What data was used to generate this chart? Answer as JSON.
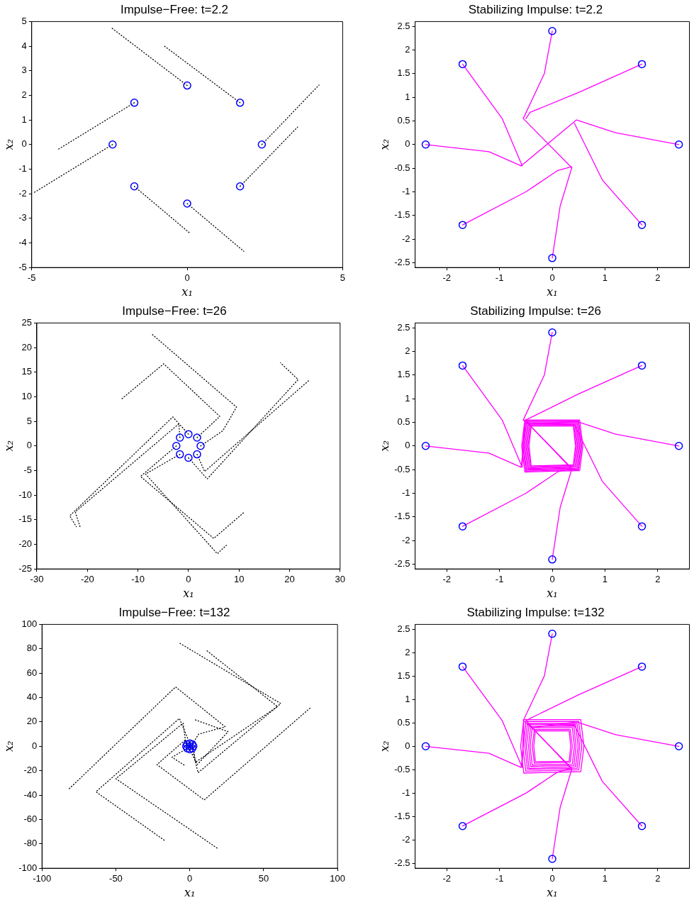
{
  "chart_data": [
    {
      "type": "line",
      "title": "Impulse−Free: t=2.2",
      "xlabel": "x₁",
      "ylabel": "x₂",
      "xlim": [
        -5,
        5
      ],
      "xticks": [
        -5,
        0,
        5
      ],
      "ylim": [
        -5,
        5
      ],
      "yticks": [
        -5,
        -4,
        -3,
        -2,
        -1,
        0,
        1,
        2,
        3,
        4,
        5
      ],
      "line_style": "dotted",
      "series": [
        {
          "type": "line",
          "color": "#000000",
          "x": [
            0,
            -2.42
          ],
          "values": [
            2.4,
            4.73
          ]
        },
        {
          "type": "line",
          "color": "#000000",
          "x": [
            1.7,
            -0.73
          ],
          "values": [
            1.7,
            4.0
          ]
        },
        {
          "type": "line",
          "color": "#000000",
          "x": [
            -1.7,
            -4.17
          ],
          "values": [
            1.7,
            -0.21
          ]
        },
        {
          "type": "line",
          "color": "#000000",
          "x": [
            -2.4,
            -4.95
          ],
          "values": [
            0,
            -1.97
          ]
        },
        {
          "type": "line",
          "color": "#000000",
          "x": [
            -1.7,
            0.11
          ],
          "values": [
            -1.7,
            -3.63
          ]
        },
        {
          "type": "line",
          "color": "#000000",
          "x": [
            0,
            1.82
          ],
          "values": [
            -2.4,
            -4.34
          ]
        },
        {
          "type": "line",
          "color": "#000000",
          "x": [
            2.4,
            4.24
          ],
          "values": [
            0,
            2.42
          ]
        },
        {
          "type": "line",
          "color": "#000000",
          "x": [
            1.7,
            3.55
          ],
          "values": [
            -1.7,
            0.71
          ]
        },
        {
          "type": "scatter",
          "marker": "circle",
          "color": "#0000ff",
          "x": [
            2.4,
            1.7,
            0,
            -1.7,
            -2.4,
            -1.7,
            0,
            1.7
          ],
          "values": [
            0,
            1.7,
            2.4,
            1.7,
            0,
            -1.7,
            -2.4,
            -1.7
          ]
        }
      ]
    },
    {
      "type": "line",
      "title": "Stabilizing Impulse: t=2.2",
      "xlabel": "x₁",
      "ylabel": "x₂",
      "xlim": [
        -2.6,
        2.6
      ],
      "xticks": [
        -2,
        -1,
        0,
        1,
        2
      ],
      "ylim": [
        -2.6,
        2.6
      ],
      "yticks": [
        -2.5,
        -2,
        -1.5,
        -1,
        -0.5,
        0,
        0.5,
        1,
        1.5,
        2,
        2.5
      ],
      "line_style": "solid",
      "series": [
        {
          "type": "line",
          "color": "#ff00ff",
          "x": [
            0,
            -0.15,
            -0.55,
            0.37
          ],
          "values": [
            2.4,
            1.5,
            0.55,
            -0.49
          ]
        },
        {
          "type": "line",
          "color": "#ff00ff",
          "x": [
            1.7,
            0.5,
            -0.42,
            -0.5
          ],
          "values": [
            1.7,
            1.1,
            0.68,
            0.55
          ]
        },
        {
          "type": "line",
          "color": "#ff00ff",
          "x": [
            2.4,
            1.2,
            0.46,
            -0.59
          ],
          "values": [
            0,
            0.25,
            0.52,
            -0.45
          ]
        },
        {
          "type": "line",
          "color": "#ff00ff",
          "x": [
            1.7,
            0.95,
            0.42
          ],
          "values": [
            -1.7,
            -0.75,
            0.45
          ]
        },
        {
          "type": "line",
          "color": "#ff00ff",
          "x": [
            0,
            0.15,
            0.37
          ],
          "values": [
            -2.4,
            -1.3,
            -0.49
          ]
        },
        {
          "type": "line",
          "color": "#ff00ff",
          "x": [
            -1.7,
            -0.5,
            0.1,
            0.37
          ],
          "values": [
            -1.7,
            -1.0,
            -0.55,
            -0.47
          ]
        },
        {
          "type": "line",
          "color": "#ff00ff",
          "x": [
            -2.4,
            -1.2,
            -0.59
          ],
          "values": [
            0,
            -0.15,
            -0.45
          ]
        },
        {
          "type": "line",
          "color": "#ff00ff",
          "x": [
            -1.7,
            -0.95,
            -0.57
          ],
          "values": [
            1.7,
            0.55,
            -0.45
          ]
        },
        {
          "type": "scatter",
          "marker": "circle",
          "color": "#0000ff",
          "x": [
            2.4,
            1.7,
            0,
            -1.7,
            -2.4,
            -1.7,
            0,
            1.7
          ],
          "values": [
            0,
            1.7,
            2.4,
            1.7,
            0,
            -1.7,
            -2.4,
            -1.7
          ]
        }
      ]
    },
    {
      "type": "line",
      "title": "Impulse−Free: t=26",
      "xlabel": "x₁",
      "ylabel": "x₂",
      "xlim": [
        -30,
        30
      ],
      "xticks": [
        -30,
        -20,
        -10,
        0,
        10,
        20,
        30
      ],
      "ylim": [
        -25,
        25
      ],
      "yticks": [
        -25,
        -20,
        -15,
        -10,
        -5,
        0,
        5,
        10,
        15,
        20,
        25
      ],
      "line_style": "dotted",
      "series": [
        {
          "type": "line",
          "color": "#000000",
          "x": [
            0,
            -3.1,
            -23.5,
            -22.2
          ],
          "values": [
            2.4,
            5.9,
            -14.2,
            -16.4
          ]
        },
        {
          "type": "line",
          "color": "#000000",
          "x": [
            -1.7,
            -1.9,
            -22.4,
            -21.4
          ],
          "values": [
            1.7,
            4.5,
            -13.4,
            -16.6
          ]
        },
        {
          "type": "line",
          "color": "#000000",
          "x": [
            -2.4,
            -9.5,
            5,
            11.1
          ],
          "values": [
            0,
            -6.2,
            -18.8,
            -13.4
          ]
        },
        {
          "type": "line",
          "color": "#000000",
          "x": [
            -1.7,
            -8.5,
            5.7,
            7.5
          ],
          "values": [
            -1.7,
            -5.7,
            -21.9,
            -20.2
          ]
        },
        {
          "type": "line",
          "color": "#000000",
          "x": [
            0,
            3.7,
            21.7,
            18.2
          ],
          "values": [
            -2.4,
            -6.7,
            13.5,
            16.9
          ]
        },
        {
          "type": "line",
          "color": "#000000",
          "x": [
            1.7,
            3.2,
            23.8
          ],
          "values": [
            -1.7,
            -5.2,
            13.3
          ]
        },
        {
          "type": "line",
          "color": "#000000",
          "x": [
            2.4,
            6.8,
            9.5,
            -7.2
          ],
          "values": [
            0,
            3.1,
            7.9,
            22.7
          ]
        },
        {
          "type": "line",
          "color": "#000000",
          "x": [
            1.7,
            6.2,
            -4.9,
            -13.4
          ],
          "values": [
            1.7,
            6.0,
            16.7,
            9.4
          ]
        },
        {
          "type": "scatter",
          "marker": "circle",
          "color": "#0000ff",
          "x": [
            2.4,
            1.7,
            0,
            -1.7,
            -2.4,
            -1.7,
            0,
            1.7
          ],
          "values": [
            0,
            1.7,
            2.4,
            1.7,
            0,
            -1.7,
            -2.4,
            -1.7
          ]
        }
      ]
    },
    {
      "type": "line",
      "title": "Stabilizing Impulse: t=26",
      "xlabel": "x₁",
      "ylabel": "x₂",
      "xlim": [
        -2.6,
        2.6
      ],
      "xticks": [
        -2,
        -1,
        0,
        1,
        2
      ],
      "ylim": [
        -2.6,
        2.6
      ],
      "yticks": [
        -2.5,
        -2,
        -1.5,
        -1,
        -0.5,
        0,
        0.5,
        1,
        1.5,
        2,
        2.5
      ],
      "line_style": "solid",
      "series": [
        {
          "type": "line",
          "color": "#ff00ff",
          "x": [
            0,
            -0.15,
            -0.55,
            -0.4,
            0.4,
            0.44,
            0.4,
            -0.4,
            -0.44,
            -0.4
          ],
          "values": [
            2.4,
            1.5,
            0.55,
            0.42,
            0.42,
            0,
            -0.4,
            -0.42,
            0,
            0.42
          ]
        },
        {
          "type": "line",
          "color": "#ff00ff",
          "x": [
            1.7,
            0.5,
            -0.5,
            -0.41,
            0.41,
            0.46,
            0.41,
            -0.41,
            -0.46,
            -0.41
          ],
          "values": [
            1.7,
            1.1,
            0.55,
            0.44,
            0.44,
            0,
            -0.41,
            -0.44,
            0,
            0.44
          ]
        },
        {
          "type": "line",
          "color": "#ff00ff",
          "x": [
            2.4,
            1.2,
            0.46,
            -0.43,
            0.43,
            0.48,
            0.43,
            -0.43,
            -0.48,
            -0.43
          ],
          "values": [
            0,
            0.25,
            0.52,
            0.46,
            0.46,
            0,
            -0.43,
            -0.46,
            0,
            0.46
          ]
        },
        {
          "type": "line",
          "color": "#ff00ff",
          "x": [
            1.7,
            0.95,
            0.42,
            -0.45,
            0.45,
            0.5,
            0.45,
            -0.45,
            -0.5,
            -0.45
          ],
          "values": [
            -1.7,
            -0.75,
            0.45,
            0.48,
            0.48,
            0,
            -0.45,
            -0.48,
            0,
            0.48
          ]
        },
        {
          "type": "line",
          "color": "#ff00ff",
          "x": [
            0,
            0.15,
            0.37,
            -0.47,
            0.47,
            0.52,
            0.47,
            -0.47,
            -0.52,
            -0.47
          ],
          "values": [
            -2.4,
            -1.3,
            -0.49,
            0.49,
            0.49,
            0,
            -0.47,
            -0.49,
            0,
            0.49
          ]
        },
        {
          "type": "line",
          "color": "#ff00ff",
          "x": [
            -1.7,
            -0.5,
            0.1,
            0.37,
            -0.49,
            0.49,
            0.54,
            0.49,
            -0.49,
            -0.54,
            -0.49
          ],
          "values": [
            -1.7,
            -1.0,
            -0.55,
            -0.47,
            0.51,
            0.51,
            0,
            -0.49,
            -0.51,
            0,
            0.51
          ]
        },
        {
          "type": "line",
          "color": "#ff00ff",
          "x": [
            -2.4,
            -1.2,
            -0.59,
            -0.5,
            0.5,
            0.56,
            0.5,
            -0.5,
            -0.56,
            -0.5
          ],
          "values": [
            0,
            -0.15,
            -0.45,
            0.53,
            0.53,
            0,
            -0.5,
            -0.53,
            0,
            0.53
          ]
        },
        {
          "type": "line",
          "color": "#ff00ff",
          "x": [
            -1.7,
            -0.95,
            -0.57,
            -0.52,
            0.52,
            0.58,
            0.52,
            -0.52,
            -0.58,
            -0.52
          ],
          "values": [
            1.7,
            0.55,
            -0.45,
            0.55,
            0.55,
            0,
            -0.52,
            -0.55,
            0,
            0.55
          ]
        },
        {
          "type": "scatter",
          "marker": "circle",
          "color": "#0000ff",
          "x": [
            2.4,
            1.7,
            0,
            -1.7,
            -2.4,
            -1.7,
            0,
            1.7
          ],
          "values": [
            0,
            1.7,
            2.4,
            1.7,
            0,
            -1.7,
            -2.4,
            -1.7
          ]
        }
      ]
    },
    {
      "type": "line",
      "title": "Impulse−Free: t=132",
      "xlabel": "x₁",
      "ylabel": "x₂",
      "xlim": [
        -100,
        100
      ],
      "xticks": [
        -100,
        -50,
        0,
        50,
        100
      ],
      "ylim": [
        -100,
        100
      ],
      "yticks": [
        -100,
        -80,
        -60,
        -40,
        -20,
        0,
        20,
        40,
        60,
        80,
        100
      ],
      "line_style": "dotted",
      "series": [
        {
          "type": "line",
          "color": "#000000",
          "x": [
            -1.7,
            -2.9,
            -22.2,
            9.8,
            82
          ],
          "values": [
            1.7,
            5.4,
            -15,
            -44,
            32
          ]
        },
        {
          "type": "line",
          "color": "#000000",
          "x": [
            1.7,
            5.6,
            61.6,
            -6.7
          ],
          "values": [
            -1.7,
            -21.7,
            35.1,
            84.5
          ]
        },
        {
          "type": "line",
          "color": "#000000",
          "x": [
            2.4,
            3.9,
            59.4,
            11.4
          ],
          "values": [
            0,
            -13,
            32.6,
            78.6
          ]
        },
        {
          "type": "line",
          "color": "#000000",
          "x": [
            1.7,
            6,
            24,
            -9.6,
            -82
          ],
          "values": [
            1.7,
            10,
            16,
            48.7,
            -35.3
          ]
        },
        {
          "type": "line",
          "color": "#000000",
          "x": [
            0,
            -7,
            -63.5,
            -17.2
          ],
          "values": [
            2.4,
            22.9,
            -37.3,
            -77.1
          ]
        },
        {
          "type": "line",
          "color": "#000000",
          "x": [
            -2.4,
            -4.5,
            -50,
            19
          ],
          "values": [
            0,
            19,
            -26.6,
            -83.9
          ]
        },
        {
          "type": "line",
          "color": "#000000",
          "x": [
            0,
            5,
            26,
            3
          ],
          "values": [
            -2.4,
            -15,
            12,
            22
          ]
        },
        {
          "type": "line",
          "color": "#000000",
          "x": [
            -1.7,
            -12,
            -3
          ],
          "values": [
            -1.7,
            -9,
            -16
          ]
        },
        {
          "type": "scatter",
          "marker": "circle",
          "color": "#0000ff",
          "x": [
            2.4,
            1.7,
            0,
            -1.7,
            -2.4,
            -1.7,
            0,
            1.7
          ],
          "values": [
            0,
            1.7,
            2.4,
            1.7,
            0,
            -1.7,
            -2.4,
            -1.7
          ]
        }
      ]
    },
    {
      "type": "line",
      "title": "Stabilizing Impulse: t=132",
      "xlabel": "x₁",
      "ylabel": "x₂",
      "xlim": [
        -2.6,
        2.6
      ],
      "xticks": [
        -2,
        -1,
        0,
        1,
        2
      ],
      "ylim": [
        -2.6,
        2.6
      ],
      "yticks": [
        -2.5,
        -2,
        -1.5,
        -1,
        -0.5,
        0,
        0.5,
        1,
        1.5,
        2,
        2.5
      ],
      "line_style": "solid",
      "series": [
        {
          "type": "line",
          "color": "#ff00ff",
          "x": [
            0,
            -0.15,
            -0.55,
            -0.32,
            0.32,
            0.35,
            0.32,
            -0.32,
            -0.35,
            -0.32
          ],
          "values": [
            2.4,
            1.5,
            0.55,
            0.33,
            0.33,
            0,
            -0.32,
            -0.33,
            0,
            0.33
          ]
        },
        {
          "type": "line",
          "color": "#ff00ff",
          "x": [
            1.7,
            0.5,
            -0.5,
            -0.34,
            0.34,
            0.38,
            0.34,
            -0.34,
            -0.38,
            -0.34
          ],
          "values": [
            1.7,
            1.1,
            0.55,
            0.36,
            0.36,
            0,
            -0.34,
            -0.36,
            0,
            0.36
          ]
        },
        {
          "type": "line",
          "color": "#ff00ff",
          "x": [
            2.4,
            1.2,
            0.46,
            -0.38,
            0.38,
            0.42,
            0.38,
            -0.38,
            -0.42,
            -0.38
          ],
          "values": [
            0,
            0.25,
            0.52,
            0.4,
            0.4,
            0,
            -0.38,
            -0.4,
            0,
            0.4
          ]
        },
        {
          "type": "line",
          "color": "#ff00ff",
          "x": [
            1.7,
            0.95,
            0.42,
            -0.41,
            0.41,
            0.45,
            0.41,
            -0.41,
            -0.45,
            -0.41
          ],
          "values": [
            -1.7,
            -0.75,
            0.45,
            0.43,
            0.43,
            0,
            -0.41,
            -0.43,
            0,
            0.43
          ]
        },
        {
          "type": "line",
          "color": "#ff00ff",
          "x": [
            0,
            0.15,
            0.37,
            -0.44,
            0.44,
            0.49,
            0.44,
            -0.44,
            -0.49,
            -0.44
          ],
          "values": [
            -2.4,
            -1.3,
            -0.49,
            0.47,
            0.47,
            0,
            -0.44,
            -0.47,
            0,
            0.47
          ]
        },
        {
          "type": "line",
          "color": "#ff00ff",
          "x": [
            -1.7,
            -0.5,
            0.1,
            0.37,
            -0.47,
            0.47,
            0.52,
            0.47,
            -0.47,
            -0.52,
            -0.47
          ],
          "values": [
            -1.7,
            -1.0,
            -0.55,
            -0.47,
            0.49,
            0.49,
            0,
            -0.47,
            -0.49,
            0,
            0.49
          ]
        },
        {
          "type": "line",
          "color": "#ff00ff",
          "x": [
            -2.4,
            -1.2,
            -0.59,
            -0.5,
            0.5,
            0.56,
            0.5,
            -0.5,
            -0.56,
            -0.5
          ],
          "values": [
            0,
            -0.15,
            -0.45,
            0.53,
            0.53,
            0,
            -0.5,
            -0.53,
            0,
            0.53
          ]
        },
        {
          "type": "line",
          "color": "#ff00ff",
          "x": [
            -1.7,
            -0.95,
            -0.57,
            -0.54,
            0.54,
            0.6,
            0.54,
            -0.54,
            -0.6,
            -0.54
          ],
          "values": [
            1.7,
            0.55,
            -0.45,
            0.57,
            0.57,
            0,
            -0.54,
            -0.57,
            0,
            0.57
          ]
        },
        {
          "type": "scatter",
          "marker": "circle",
          "color": "#0000ff",
          "x": [
            2.4,
            1.7,
            0,
            -1.7,
            -2.4,
            -1.7,
            0,
            1.7
          ],
          "values": [
            0,
            1.7,
            2.4,
            1.7,
            0,
            -1.7,
            -2.4,
            -1.7
          ]
        }
      ]
    }
  ]
}
